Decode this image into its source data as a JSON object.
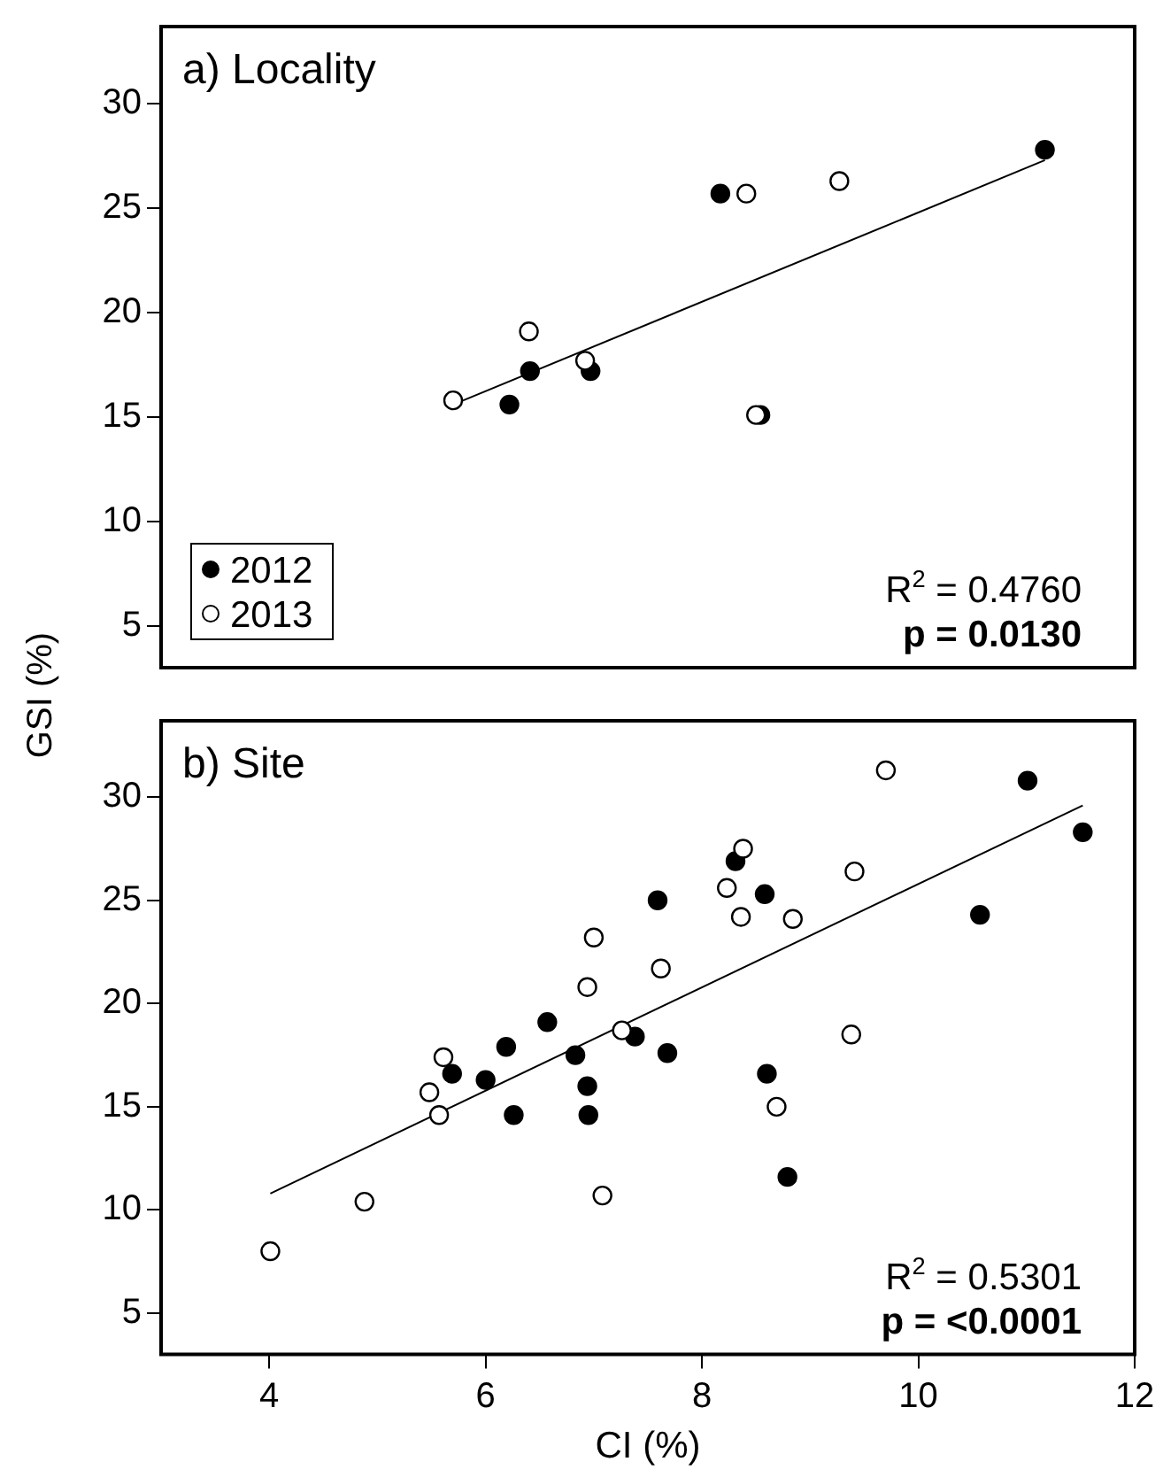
{
  "chart_data": [
    {
      "type": "scatter",
      "title": "a) Locality",
      "ylabel": "GSI (%)",
      "xlim": [
        3,
        12
      ],
      "xticks": [
        4,
        6,
        8,
        10,
        12
      ],
      "ylim": [
        3,
        33.7
      ],
      "yticks": [
        5,
        10,
        15,
        20,
        25,
        30
      ],
      "tick_labels": "y",
      "grid": false,
      "legend": "bottom left",
      "marker": "circle",
      "annotations": [
        "R$^{2}$ = 0.4760",
        "p = 0.0130"
      ],
      "series": [
        {
          "name": "2012",
          "color": "#000000",
          "x": [
            11.17,
            8.17,
            6.41,
            6.97,
            6.22,
            8.54
          ],
          "values": [
            27.8,
            25.7,
            17.2,
            17.2,
            15.6,
            15.1
          ]
        },
        {
          "name": "2013",
          "color": "#ffffff",
          "x": [
            8.41,
            9.27,
            6.4,
            6.92,
            5.7,
            8.5
          ],
          "values": [
            25.7,
            26.3,
            19.1,
            17.7,
            15.8,
            15.1
          ]
        },
        {
          "type": "line",
          "marker": "none",
          "color": "#000000",
          "x": [
            5.7,
            11.17
          ],
          "values": [
            15.6,
            27.3
          ]
        }
      ]
    },
    {
      "type": "scatter",
      "title": "b) Site",
      "xlabel": "CI (%)",
      "xlim": [
        3,
        12
      ],
      "xticks": [
        4,
        6,
        8,
        10,
        12
      ],
      "ylim": [
        3,
        33.7
      ],
      "yticks": [
        5,
        10,
        15,
        20,
        25,
        30
      ],
      "grid": false,
      "marker": "circle",
      "annotations": [
        "R$^{2}$ = 0.5301",
        "p = <0.0001"
      ],
      "series": [
        {
          "color": "#000000",
          "x": [
            7.59,
            6.57,
            6.19,
            5.69,
            6.0,
            6.83,
            6.94,
            6.26,
            6.95,
            7.38,
            7.68,
            11.01,
            11.52,
            10.57,
            8.31,
            8.58,
            8.6,
            8.79
          ],
          "values": [
            25.0,
            19.1,
            17.9,
            16.6,
            16.3,
            17.5,
            16.0,
            14.6,
            14.6,
            18.4,
            17.6,
            30.8,
            28.3,
            24.3,
            26.9,
            25.3,
            16.6,
            11.6
          ]
        },
        {
          "color": "#ffffff",
          "x": [
            7.0,
            7.62,
            6.94,
            7.26,
            5.61,
            5.48,
            5.57,
            4.88,
            4.01,
            7.08,
            9.7,
            8.38,
            8.23,
            8.36,
            8.84,
            9.41,
            9.38,
            8.69
          ],
          "values": [
            23.2,
            21.7,
            20.8,
            18.7,
            17.4,
            15.7,
            14.6,
            10.4,
            8.0,
            10.7,
            31.3,
            27.5,
            25.6,
            24.2,
            24.1,
            26.4,
            18.5,
            15.0
          ]
        },
        {
          "type": "line",
          "marker": "none",
          "color": "#000000",
          "x": [
            4.01,
            11.52
          ],
          "values": [
            10.8,
            29.6
          ]
        }
      ]
    }
  ]
}
